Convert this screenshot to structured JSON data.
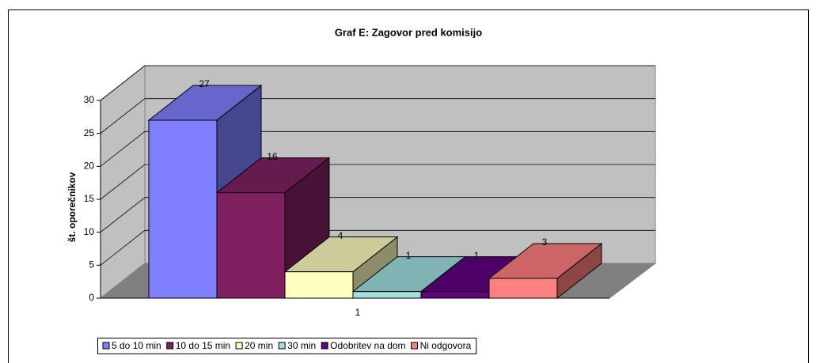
{
  "chart_data": {
    "type": "bar3d",
    "title": "Graf E: Zagovor pred komisijo",
    "y_label": "št. oporečnikov",
    "categories": [
      "1"
    ],
    "series": [
      {
        "name": "5 do 10 min",
        "color": "#8080FF",
        "values": [
          27
        ]
      },
      {
        "name": "10 do 15 min",
        "color": "#802060",
        "values": [
          16
        ]
      },
      {
        "name": "20 min",
        "color": "#FFFFC0",
        "values": [
          4
        ]
      },
      {
        "name": "30 min",
        "color": "#A0E0E0",
        "values": [
          1
        ]
      },
      {
        "name": "Odobritev na dom",
        "color": "#600080",
        "values": [
          1
        ]
      },
      {
        "name": "Ni odgovora",
        "color": "#FF8080",
        "values": [
          3
        ]
      }
    ],
    "ylim": [
      0,
      30
    ],
    "yticks": [
      0,
      5,
      10,
      15,
      20,
      25,
      30
    ],
    "grid": true,
    "legend": "bottom"
  }
}
